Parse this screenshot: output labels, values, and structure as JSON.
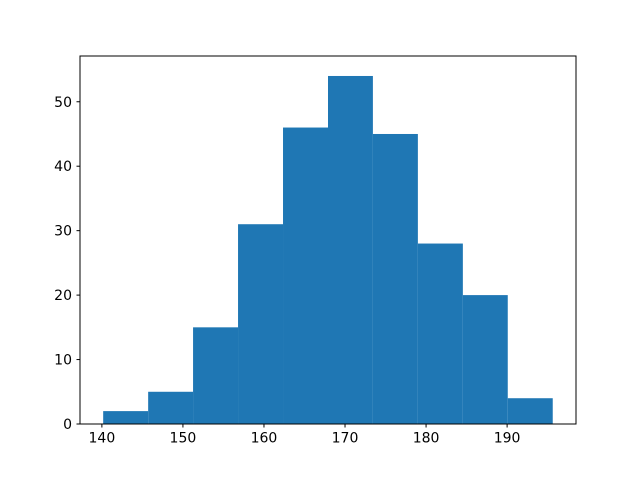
{
  "chart_data": {
    "type": "bar",
    "subtype": "histogram",
    "title": "",
    "xlabel": "",
    "ylabel": "",
    "bin_edges": [
      140.16,
      145.71,
      151.25,
      156.8,
      162.35,
      167.9,
      173.44,
      178.99,
      184.54,
      190.08,
      195.63
    ],
    "counts": [
      2,
      5,
      15,
      31,
      46,
      54,
      45,
      28,
      20,
      4
    ],
    "total_samples": 250,
    "x_ticks": [
      140,
      150,
      160,
      170,
      180,
      190
    ],
    "y_ticks": [
      0,
      10,
      20,
      30,
      40,
      50
    ],
    "xlim": [
      137.3,
      198.5
    ],
    "ylim": [
      0,
      57.1
    ],
    "grid": false,
    "legend_position": "none",
    "bar_color": "#1f77b4",
    "axis_color": "#000000",
    "background_color": "#ffffff"
  }
}
